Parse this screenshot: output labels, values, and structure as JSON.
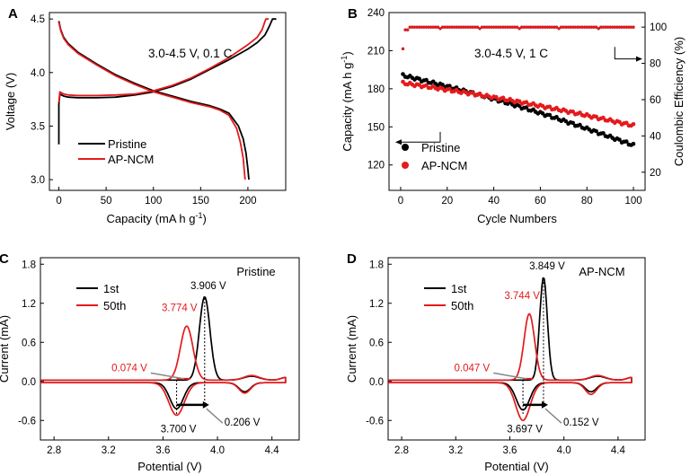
{
  "colors": {
    "black": "#000000",
    "red": "#e41a1c",
    "grey": "#888888"
  },
  "chart_data": [
    {
      "id": "A",
      "panel_label": "A",
      "type": "line",
      "xlabel": "Capacity (mA h g",
      "xlabel_sup": "-1",
      "xlabel_tail": ")",
      "ylabel": "Voltage (V)",
      "xlim": [
        -10,
        240
      ],
      "ylim": [
        2.9,
        4.56
      ],
      "xticks": [
        0,
        50,
        100,
        150,
        200
      ],
      "yticks": [
        3.0,
        3.5,
        4.0,
        4.5
      ],
      "annotation": "3.0-4.5 V, 0.1 C",
      "legend": {
        "position": "bottom-left",
        "entries": [
          "Pristine",
          "AP-NCM"
        ]
      },
      "series": [
        {
          "name": "Pristine charge",
          "legend": "Pristine",
          "color": "black",
          "x": [
            0,
            0,
            1,
            5,
            10,
            20,
            40,
            60,
            80,
            100,
            120,
            140,
            160,
            180,
            200,
            210,
            218,
            222,
            226,
            230
          ],
          "y": [
            3.33,
            3.7,
            3.8,
            3.78,
            3.77,
            3.765,
            3.765,
            3.77,
            3.79,
            3.82,
            3.87,
            3.94,
            4.03,
            4.12,
            4.22,
            4.28,
            4.35,
            4.42,
            4.5,
            4.5
          ]
        },
        {
          "name": "Pristine discharge",
          "legend": "Pristine",
          "color": "black",
          "x": [
            0,
            2,
            5,
            10,
            20,
            40,
            60,
            80,
            100,
            120,
            140,
            160,
            170,
            180,
            190,
            195,
            198,
            200,
            201
          ],
          "y": [
            4.48,
            4.4,
            4.33,
            4.27,
            4.19,
            4.08,
            3.98,
            3.9,
            3.83,
            3.78,
            3.73,
            3.69,
            3.66,
            3.62,
            3.5,
            3.38,
            3.25,
            3.1,
            3.0
          ]
        },
        {
          "name": "AP-NCM charge",
          "legend": "AP-NCM",
          "color": "red",
          "x": [
            0,
            1,
            5,
            10,
            20,
            40,
            60,
            80,
            100,
            120,
            140,
            160,
            180,
            200,
            210,
            215,
            219,
            222
          ],
          "y": [
            3.72,
            3.82,
            3.8,
            3.79,
            3.785,
            3.785,
            3.79,
            3.8,
            3.83,
            3.88,
            3.95,
            4.04,
            4.14,
            4.26,
            4.33,
            4.4,
            4.5,
            4.5
          ]
        },
        {
          "name": "AP-NCM discharge",
          "legend": "AP-NCM",
          "color": "red",
          "x": [
            0,
            2,
            5,
            10,
            20,
            40,
            60,
            80,
            100,
            120,
            140,
            160,
            170,
            180,
            188,
            192,
            195,
            197
          ],
          "y": [
            4.47,
            4.39,
            4.32,
            4.26,
            4.18,
            4.07,
            3.97,
            3.89,
            3.82,
            3.77,
            3.72,
            3.68,
            3.65,
            3.6,
            3.48,
            3.35,
            3.2,
            3.0
          ]
        }
      ]
    },
    {
      "id": "B",
      "panel_label": "B",
      "type": "scatter",
      "xlabel": "Cycle Numbers",
      "ylabel": "Capacity (mA h g",
      "ylabel_sup": "-1",
      "ylabel_tail": ")",
      "y2label": "Coulombic Efficiency (%)",
      "xlim": [
        -5,
        105
      ],
      "ylim": [
        100,
        240
      ],
      "y2lim": [
        10,
        108
      ],
      "xticks": [
        0,
        20,
        40,
        60,
        80,
        100
      ],
      "yticks": [
        120,
        150,
        180,
        210,
        240
      ],
      "y2ticks": [
        20,
        40,
        60,
        80,
        100
      ],
      "annotation": "3.0-4.5 V, 1 C",
      "legend": {
        "position": "bottom-left",
        "entries": [
          "Pristine",
          "AP-NCM"
        ]
      },
      "series": [
        {
          "name": "Pristine",
          "axis": "left",
          "color": "black",
          "start": 190.5,
          "end": 135.5,
          "dip": 0
        },
        {
          "name": "AP-NCM",
          "axis": "left",
          "color": "red",
          "start": 184.5,
          "end": 151.0,
          "dip": 0
        },
        {
          "name": "Pristine CE",
          "axis": "right",
          "color": "black",
          "start": 98.5,
          "end": 100,
          "dip": 88
        },
        {
          "name": "AP-NCM CE",
          "axis": "right",
          "color": "red",
          "start": 98.5,
          "end": 100,
          "dip": 88
        }
      ]
    },
    {
      "id": "C",
      "panel_label": "C",
      "type": "line",
      "xlabel": "Potential (V)",
      "ylabel": "Current (mA)",
      "xlim": [
        2.7,
        4.6
      ],
      "ylim": [
        -0.9,
        1.9
      ],
      "xticks": [
        2.8,
        3.2,
        3.6,
        4.0,
        4.4
      ],
      "yticks": [
        -0.6,
        0.0,
        0.6,
        1.2,
        1.8
      ],
      "title": "Pristine",
      "legend": {
        "position": "top-left",
        "entries": [
          "1st",
          "50th"
        ]
      },
      "annotations": {
        "peak_1st": "3.906 V",
        "peak_50th": "3.774 V",
        "left_gap": "0.074 V",
        "reduction": "3.700 V",
        "polarization": "0.206 V"
      },
      "series": [
        {
          "name": "1st",
          "color": "black",
          "anodic": {
            "base": 0.02,
            "peaks": [
              [
                3.906,
                1.28,
                0.055
              ],
              [
                4.25,
                0.06,
                0.08
              ]
            ],
            "tail": 0.04
          },
          "cathodic": {
            "base": -0.02,
            "peaks": [
              [
                3.7,
                -0.4,
                0.07
              ],
              [
                4.2,
                -0.14,
                0.06
              ]
            ]
          }
        },
        {
          "name": "50th",
          "color": "red",
          "anodic": {
            "base": 0.02,
            "peaks": [
              [
                3.774,
                0.83,
                0.065
              ],
              [
                4.25,
                0.07,
                0.08
              ]
            ],
            "tail": 0.04
          },
          "cathodic": {
            "base": -0.02,
            "peaks": [
              [
                3.7,
                -0.5,
                0.08
              ],
              [
                4.2,
                -0.16,
                0.06
              ]
            ]
          }
        }
      ]
    },
    {
      "id": "D",
      "panel_label": "D",
      "type": "line",
      "xlabel": "Potential (V)",
      "ylabel": "Current (mA)",
      "xlim": [
        2.7,
        4.6
      ],
      "ylim": [
        -0.9,
        1.9
      ],
      "xticks": [
        2.8,
        3.2,
        3.6,
        4.0,
        4.4
      ],
      "yticks": [
        -0.6,
        0.0,
        0.6,
        1.2,
        1.8
      ],
      "title": "AP-NCM",
      "legend": {
        "position": "top-left",
        "entries": [
          "1st",
          "50th"
        ]
      },
      "annotations": {
        "peak_1st": "3.849 V",
        "peak_50th": "3.744 V",
        "left_gap": "0.047 V",
        "reduction": "3.697 V",
        "polarization": "0.152 V"
      },
      "series": [
        {
          "name": "1st",
          "color": "black",
          "anodic": {
            "base": 0.02,
            "peaks": [
              [
                3.849,
                1.58,
                0.04
              ],
              [
                4.25,
                0.06,
                0.08
              ]
            ],
            "tail": 0.04
          },
          "cathodic": {
            "base": -0.02,
            "peaks": [
              [
                3.697,
                -0.42,
                0.07
              ],
              [
                4.2,
                -0.14,
                0.06
              ]
            ]
          }
        },
        {
          "name": "50th",
          "color": "red",
          "anodic": {
            "base": 0.02,
            "peaks": [
              [
                3.744,
                1.02,
                0.055
              ],
              [
                4.25,
                0.07,
                0.08
              ]
            ],
            "tail": 0.04
          },
          "cathodic": {
            "base": -0.02,
            "peaks": [
              [
                3.697,
                -0.58,
                0.075
              ],
              [
                4.2,
                -0.18,
                0.06
              ]
            ]
          }
        }
      ]
    }
  ]
}
